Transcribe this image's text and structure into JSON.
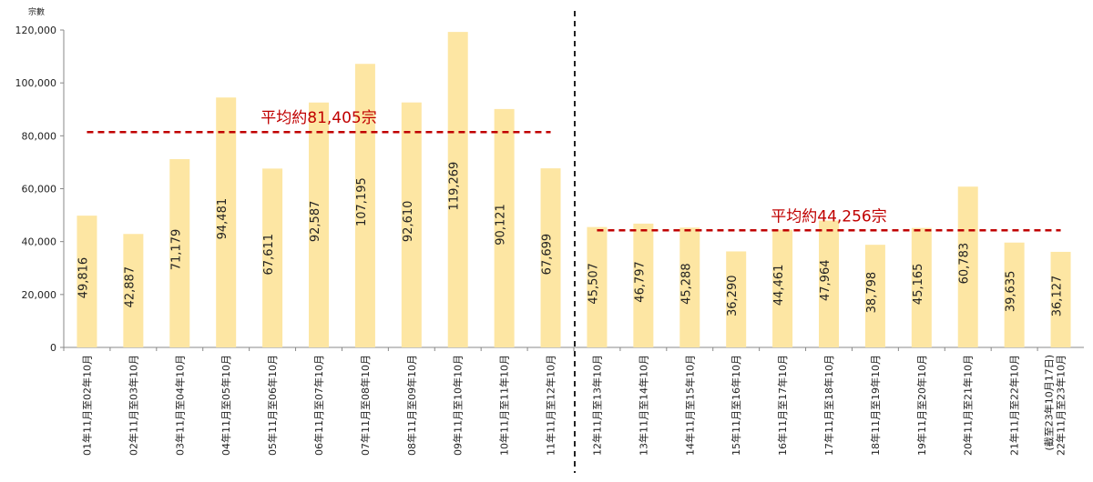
{
  "chart_data": {
    "type": "bar",
    "y_label": "宗數",
    "categories": [
      "01年11月至02年10月",
      "02年11月至03年10月",
      "03年11月至04年10月",
      "04年11月至05年10月",
      "05年11月至06年10月",
      "06年11月至07年10月",
      "07年11月至08年10月",
      "08年11月至09年10月",
      "09年11月至10年10月",
      "10年11月至11年10月",
      "11年11月至12年10月",
      "12年11月至13年10月",
      "13年11月至14年10月",
      "14年11月至15年10月",
      "15年11月至16年10月",
      "16年11月至17年10月",
      "17年11月至18年10月",
      "18年11月至19年10月",
      "19年11月至20年10月",
      "20年11月至21年10月",
      "21年11月至22年10月",
      "22年11月至23年10月\n(截至23年10月17日)"
    ],
    "values": [
      49816,
      42887,
      71179,
      94481,
      67611,
      92587,
      107195,
      92610,
      119269,
      90121,
      67699,
      45507,
      46797,
      45288,
      36290,
      44461,
      47964,
      38798,
      45165,
      60783,
      39635,
      36127
    ],
    "value_labels": [
      "49,816",
      "42,887",
      "71,179",
      "94,481",
      "67,611",
      "92,587",
      "107,195",
      "92,610",
      "119,269",
      "90,121",
      "67,699",
      "45,507",
      "46,797",
      "45,288",
      "36,290",
      "44,461",
      "47,964",
      "38,798",
      "45,165",
      "60,783",
      "39,635",
      "36,127"
    ],
    "color": "#fde6a3",
    "ylim": [
      0,
      120000
    ],
    "yticks": [
      0,
      {
        "value": 20000,
        "label": "20,000"
      },
      {
        "value": 40000,
        "label": "40,000"
      },
      {
        "value": 60000,
        "label": "60,000"
      },
      {
        "value": 80000,
        "label": "80,000"
      },
      {
        "value": 100000,
        "label": "100,000"
      },
      {
        "value": 120000,
        "label": "120,000"
      }
    ],
    "averages": [
      {
        "label": "平均約81,405宗",
        "value": 81405
      },
      {
        "label": "平均約44,256宗",
        "value": 44256
      }
    ],
    "average_color": "#c00000"
  }
}
